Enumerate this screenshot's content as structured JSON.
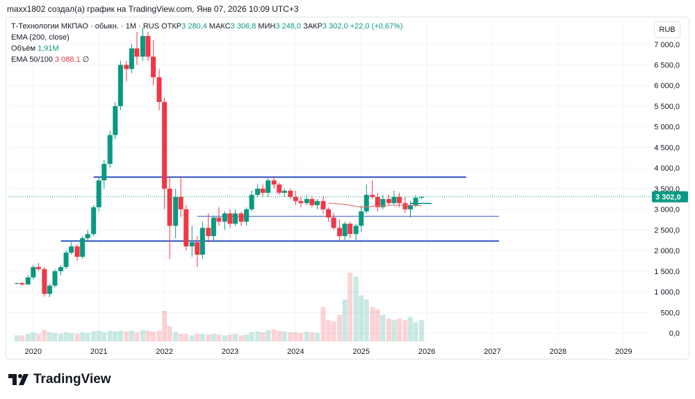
{
  "header": {
    "attribution": "maxx1802 создал(а) график на TradingView.com, Янв 07, 2026 10:09 UTC+3"
  },
  "legend": {
    "symbol": "Т-Технологии МКПАО · обыкн. · 1M · RUS",
    "open_label": "ОТКР",
    "open_value": "3 280,4",
    "high_label": "МАКС",
    "high_value": "3 306,8",
    "low_label": "МИН",
    "low_value": "3 248,0",
    "close_label": "ЗАКР",
    "close_value": "3 302,0",
    "change": "+22,0 (+0,67%)",
    "ema200": "EMA (200, close)",
    "volume_label": "Объём",
    "volume_value": "1,91M",
    "ema50_label": "EMA 50/100",
    "ema50_value": "3 088,1",
    "ema50_extra": "∅"
  },
  "currency": "RUB",
  "price_label": "3 302,0",
  "footer": {
    "brand": "TradingView"
  },
  "colors": {
    "up": "#089981",
    "down": "#f23645",
    "trend": "#2a52be",
    "ema": "#e57373"
  },
  "chart_data": {
    "type": "candlestick",
    "title": "Т-Технологии МКПАО · обыкн. · 1M · RUS",
    "y_ticks": [
      "7 000,0",
      "6 500,0",
      "6 000,0",
      "5 500,0",
      "5 000,0",
      "4 500,0",
      "4 000,0",
      "3 500,0",
      "3 000,0",
      "2 500,0",
      "2 000,0",
      "1 500,0",
      "1 000,0",
      "500,0",
      "0,0"
    ],
    "x_ticks": [
      "2020",
      "2021",
      "2022",
      "2023",
      "2024",
      "2025",
      "2026",
      "2027",
      "2028",
      "2029"
    ],
    "ylim": [
      0,
      7400
    ],
    "xlim": [
      2019.62,
      2029.4
    ],
    "candles": [
      [
        2019.75,
        1200,
        1220,
        1180,
        1210
      ],
      [
        2019.83,
        1210,
        1250,
        1150,
        1180
      ],
      [
        2019.92,
        1180,
        1400,
        1170,
        1350
      ],
      [
        2020.0,
        1350,
        1650,
        1300,
        1600
      ],
      [
        2020.08,
        1600,
        1700,
        1500,
        1550
      ],
      [
        2020.17,
        1550,
        1600,
        880,
        950
      ],
      [
        2020.25,
        950,
        1200,
        870,
        1150
      ],
      [
        2020.33,
        1150,
        1550,
        1100,
        1500
      ],
      [
        2020.42,
        1500,
        1650,
        1400,
        1600
      ],
      [
        2020.5,
        1600,
        2000,
        1550,
        1950
      ],
      [
        2020.58,
        1950,
        2200,
        1900,
        2100
      ],
      [
        2020.67,
        2100,
        2150,
        1750,
        1850
      ],
      [
        2020.75,
        1850,
        2350,
        1800,
        2300
      ],
      [
        2020.83,
        2300,
        2500,
        2250,
        2400
      ],
      [
        2020.92,
        2400,
        3100,
        2350,
        3050
      ],
      [
        2021.0,
        3050,
        3800,
        2950,
        3700
      ],
      [
        2021.08,
        3700,
        4200,
        3500,
        4100
      ],
      [
        2021.17,
        4100,
        4900,
        4000,
        4800
      ],
      [
        2021.25,
        4800,
        5600,
        4700,
        5500
      ],
      [
        2021.33,
        5500,
        6600,
        5400,
        6500
      ],
      [
        2021.42,
        6500,
        6600,
        6100,
        6400
      ],
      [
        2021.5,
        6400,
        7000,
        6300,
        6900
      ],
      [
        2021.58,
        6900,
        7300,
        6500,
        6700
      ],
      [
        2021.67,
        6700,
        7400,
        6600,
        7200
      ],
      [
        2021.75,
        7200,
        7300,
        6600,
        6700
      ],
      [
        2021.83,
        6700,
        7100,
        6000,
        6200
      ],
      [
        2021.92,
        6200,
        6400,
        5400,
        5600
      ],
      [
        2022.0,
        5600,
        5700,
        3000,
        3500
      ],
      [
        2022.08,
        3500,
        3800,
        1800,
        2600
      ],
      [
        2022.17,
        2600,
        3500,
        2300,
        3300
      ],
      [
        2022.25,
        3300,
        3800,
        2800,
        3000
      ],
      [
        2022.33,
        3000,
        3100,
        2000,
        2100
      ],
      [
        2022.42,
        2100,
        2600,
        1850,
        2200
      ],
      [
        2022.5,
        2200,
        2350,
        1600,
        1900
      ],
      [
        2022.58,
        1900,
        2700,
        1800,
        2550
      ],
      [
        2022.67,
        2550,
        2900,
        2200,
        2350
      ],
      [
        2022.75,
        2350,
        2850,
        2250,
        2800
      ],
      [
        2022.83,
        2800,
        3050,
        2600,
        2700
      ],
      [
        2022.92,
        2700,
        2950,
        2500,
        2900
      ],
      [
        2023.0,
        2900,
        3000,
        2550,
        2650
      ],
      [
        2023.08,
        2650,
        3000,
        2600,
        2900
      ],
      [
        2023.17,
        2900,
        2950,
        2600,
        2700
      ],
      [
        2023.25,
        2700,
        3050,
        2600,
        3000
      ],
      [
        2023.33,
        3000,
        3450,
        2950,
        3350
      ],
      [
        2023.42,
        3350,
        3600,
        3300,
        3500
      ],
      [
        2023.5,
        3500,
        3600,
        3300,
        3400
      ],
      [
        2023.58,
        3400,
        3750,
        3300,
        3700
      ],
      [
        2023.67,
        3700,
        3800,
        3500,
        3600
      ],
      [
        2023.75,
        3600,
        3650,
        3350,
        3400
      ],
      [
        2023.83,
        3400,
        3500,
        3300,
        3450
      ],
      [
        2023.92,
        3450,
        3500,
        3250,
        3300
      ],
      [
        2024.0,
        3300,
        3450,
        3100,
        3200
      ],
      [
        2024.08,
        3200,
        3300,
        3050,
        3150
      ],
      [
        2024.17,
        3150,
        3350,
        3100,
        3250
      ],
      [
        2024.25,
        3250,
        3300,
        3050,
        3100
      ],
      [
        2024.33,
        3100,
        3250,
        3000,
        3200
      ],
      [
        2024.42,
        3200,
        3300,
        2900,
        3000
      ],
      [
        2024.5,
        3000,
        3050,
        2700,
        2800
      ],
      [
        2024.58,
        2800,
        2900,
        2500,
        2550
      ],
      [
        2024.67,
        2550,
        2750,
        2250,
        2350
      ],
      [
        2024.75,
        2350,
        2700,
        2250,
        2650
      ],
      [
        2024.83,
        2650,
        2700,
        2300,
        2400
      ],
      [
        2024.92,
        2400,
        2650,
        2250,
        2600
      ],
      [
        2025.0,
        2600,
        3100,
        2450,
        2950
      ],
      [
        2025.08,
        2950,
        3600,
        2900,
        3350
      ],
      [
        2025.17,
        3350,
        3700,
        3250,
        3300
      ],
      [
        2025.25,
        3300,
        3400,
        2950,
        3050
      ],
      [
        2025.33,
        3050,
        3350,
        3000,
        3250
      ],
      [
        2025.42,
        3250,
        3350,
        3100,
        3150
      ],
      [
        2025.5,
        3150,
        3450,
        3100,
        3300
      ],
      [
        2025.58,
        3300,
        3400,
        3050,
        3150
      ],
      [
        2025.67,
        3150,
        3300,
        2900,
        3000
      ],
      [
        2025.75,
        3000,
        3200,
        2800,
        3100
      ],
      [
        2025.83,
        3100,
        3350,
        3050,
        3280
      ],
      [
        2025.92,
        3280,
        3307,
        3248,
        3302
      ]
    ],
    "volumes": [
      [
        2019.75,
        0.08
      ],
      [
        2019.83,
        0.08
      ],
      [
        2019.92,
        0.1
      ],
      [
        2020.0,
        0.12
      ],
      [
        2020.08,
        0.1
      ],
      [
        2020.17,
        0.15
      ],
      [
        2020.25,
        0.12
      ],
      [
        2020.33,
        0.11
      ],
      [
        2020.42,
        0.1
      ],
      [
        2020.5,
        0.12
      ],
      [
        2020.58,
        0.11
      ],
      [
        2020.67,
        0.1
      ],
      [
        2020.75,
        0.12
      ],
      [
        2020.83,
        0.11
      ],
      [
        2020.92,
        0.13
      ],
      [
        2021.0,
        0.14
      ],
      [
        2021.08,
        0.12
      ],
      [
        2021.17,
        0.14
      ],
      [
        2021.25,
        0.13
      ],
      [
        2021.33,
        0.14
      ],
      [
        2021.42,
        0.13
      ],
      [
        2021.5,
        0.14
      ],
      [
        2021.58,
        0.12
      ],
      [
        2021.67,
        0.15
      ],
      [
        2021.75,
        0.14
      ],
      [
        2021.83,
        0.13
      ],
      [
        2021.92,
        0.14
      ],
      [
        2022.0,
        0.4
      ],
      [
        2022.08,
        0.2
      ],
      [
        2022.17,
        0.12
      ],
      [
        2022.25,
        0.1
      ],
      [
        2022.33,
        0.1
      ],
      [
        2022.42,
        0.08
      ],
      [
        2022.5,
        0.1
      ],
      [
        2022.58,
        0.1
      ],
      [
        2022.67,
        0.09
      ],
      [
        2022.75,
        0.1
      ],
      [
        2022.83,
        0.09
      ],
      [
        2022.92,
        0.08
      ],
      [
        2023.0,
        0.09
      ],
      [
        2023.08,
        0.1
      ],
      [
        2023.17,
        0.08
      ],
      [
        2023.25,
        0.09
      ],
      [
        2023.33,
        0.12
      ],
      [
        2023.42,
        0.13
      ],
      [
        2023.5,
        0.12
      ],
      [
        2023.58,
        0.15
      ],
      [
        2023.67,
        0.16
      ],
      [
        2023.75,
        0.14
      ],
      [
        2023.83,
        0.13
      ],
      [
        2023.92,
        0.12
      ],
      [
        2024.0,
        0.12
      ],
      [
        2024.08,
        0.11
      ],
      [
        2024.17,
        0.13
      ],
      [
        2024.25,
        0.12
      ],
      [
        2024.33,
        0.11
      ],
      [
        2024.42,
        0.45
      ],
      [
        2024.5,
        0.28
      ],
      [
        2024.58,
        0.26
      ],
      [
        2024.67,
        0.35
      ],
      [
        2024.75,
        0.55
      ],
      [
        2024.83,
        0.9
      ],
      [
        2024.92,
        0.85
      ],
      [
        2025.0,
        0.6
      ],
      [
        2025.08,
        0.55
      ],
      [
        2025.17,
        0.45
      ],
      [
        2025.25,
        0.42
      ],
      [
        2025.33,
        0.35
      ],
      [
        2025.42,
        0.3
      ],
      [
        2025.5,
        0.28
      ],
      [
        2025.58,
        0.3
      ],
      [
        2025.67,
        0.28
      ],
      [
        2025.75,
        0.32
      ],
      [
        2025.83,
        0.25
      ],
      [
        2025.92,
        0.28
      ]
    ],
    "lines": [
      {
        "name": "resistance",
        "from": [
          2020.92,
          3780
        ],
        "to": [
          2026.6,
          3780
        ],
        "color": "#2a52be",
        "width": 2
      },
      {
        "name": "upper-mid",
        "from": [
          2022.5,
          2830
        ],
        "to": [
          2027.1,
          2830
        ],
        "color": "#2a52be",
        "width": 1
      },
      {
        "name": "support",
        "from": [
          2020.42,
          2230
        ],
        "to": [
          2027.1,
          2230
        ],
        "color": "#2a52be",
        "width": 2
      },
      {
        "name": "short-teal",
        "from": [
          2025.75,
          3140
        ],
        "to": [
          2026.07,
          3140
        ],
        "color": "#00897b",
        "width": 1.5
      }
    ],
    "ema": [
      [
        2024.5,
        3150
      ],
      [
        2024.75,
        3120
      ],
      [
        2025.0,
        3050
      ],
      [
        2025.25,
        3080
      ],
      [
        2025.5,
        3100
      ],
      [
        2025.75,
        3100
      ],
      [
        2025.92,
        3088
      ]
    ],
    "last_price": 3302
  }
}
